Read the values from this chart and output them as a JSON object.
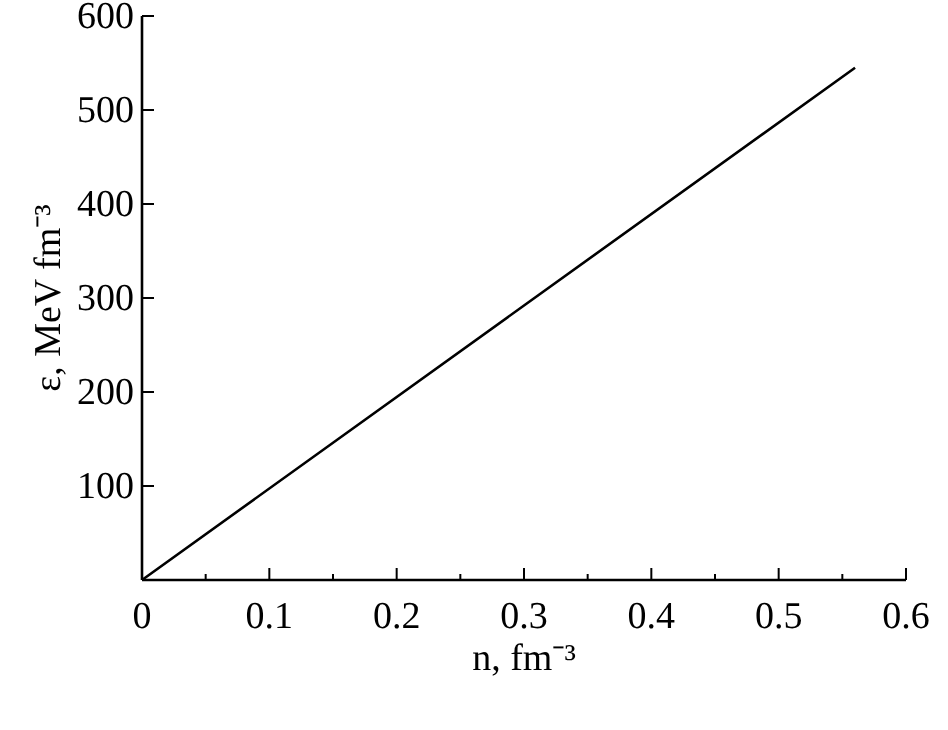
{
  "chart_data": {
    "type": "line",
    "xlabel": "n, fm⁻³",
    "ylabel": "ε, MeV fm⁻³",
    "x": [
      0,
      0.3,
      0.56
    ],
    "series": [
      {
        "color": "#000000",
        "values": [
          0,
          292,
          545
        ]
      }
    ],
    "xlim": [
      0,
      0.6
    ],
    "ylim": [
      0,
      600
    ],
    "xticks": [
      0,
      {
        "value": 0.05,
        "label": null
      },
      0.1,
      {
        "value": 0.15,
        "label": null
      },
      0.2,
      {
        "value": 0.25,
        "label": null
      },
      0.3,
      {
        "value": 0.35,
        "label": null
      },
      0.4,
      {
        "value": 0.45,
        "label": null
      },
      0.5,
      {
        "value": 0.55,
        "label": null
      },
      0.6
    ],
    "yticks": [
      {
        "value": 0,
        "label": null
      },
      100,
      200,
      300,
      400,
      500,
      600
    ],
    "grid": false,
    "marker": "none",
    "line_style": "solid"
  }
}
